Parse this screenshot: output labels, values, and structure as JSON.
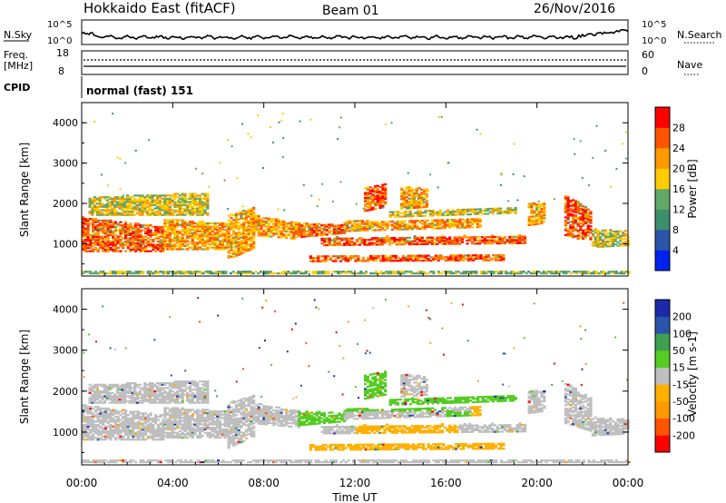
{
  "header": {
    "station": "Hokkaido East (fitACF)",
    "beam": "Beam 01",
    "date": "26/Nov/2016"
  },
  "nsky_panel": {
    "left_label": "N.Sky",
    "right_label": "N.Search",
    "left_ticks": [
      "10^5",
      "10^0"
    ],
    "right_ticks": [
      "10^5",
      "10^0"
    ]
  },
  "freq_panel": {
    "left_label_1": "Freq.",
    "left_label_2": "[MHz]",
    "right_label": "Nave",
    "left_ticks": [
      "18",
      "8"
    ],
    "right_ticks": [
      "60",
      "0"
    ]
  },
  "cpid_panel": {
    "label": "CPID",
    "program": "normal (fast) 151"
  },
  "colors": {
    "power": [
      "#0022ee",
      "#2a55a8",
      "#3c8f6c",
      "#5fa866",
      "#ffcc00",
      "#ff9900",
      "#ff5500",
      "#ff0000"
    ],
    "velocity": [
      "#ff0000",
      "#ff5500",
      "#ff9900",
      "#ffb000",
      "#bfbfbf",
      "#55cc22",
      "#3ea050",
      "#2a55a8",
      "#1a2aaa"
    ]
  },
  "chart_data": [
    {
      "type": "heatmap",
      "quantity": "power",
      "ylabel": "Slant Range [km]",
      "ylim": [
        200,
        4500
      ],
      "yticks": [
        "1000",
        "2000",
        "3000",
        "4000"
      ],
      "colorbar_label": "Power [dB]",
      "colorbar_ticks": [
        "4",
        "8",
        "12",
        "16",
        "20",
        "24",
        "28"
      ],
      "colorbar_range": [
        0,
        32
      ]
    },
    {
      "type": "heatmap",
      "quantity": "velocity",
      "ylabel": "Slant Range [km]",
      "ylim": [
        200,
        4500
      ],
      "yticks": [
        "1000",
        "2000",
        "3000",
        "4000"
      ],
      "colorbar_label": "Velocity [m s-1]",
      "colorbar_ticks": [
        "200",
        "100",
        "50",
        "15",
        "-15",
        "-50",
        "-100",
        "-200"
      ]
    }
  ],
  "xaxis": {
    "label": "Time UT",
    "ticks": [
      "00:00",
      "04:00",
      "08:00",
      "12:00",
      "16:00",
      "20:00",
      "00:00"
    ]
  }
}
